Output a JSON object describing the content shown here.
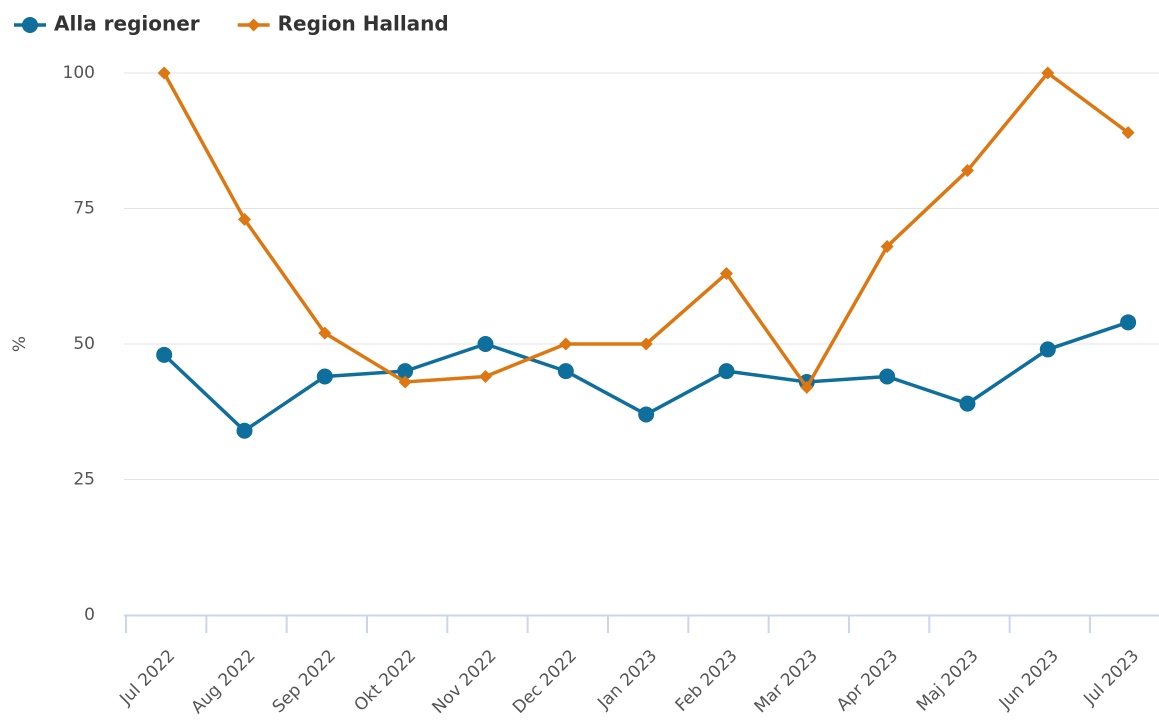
{
  "chart_data": {
    "type": "line",
    "ylabel": "%",
    "categories": [
      "Jul 2022",
      "Aug 2022",
      "Sep 2022",
      "Okt 2022",
      "Nov 2022",
      "Dec 2022",
      "Jan 2023",
      "Feb 2023",
      "Mar 2023",
      "Apr 2023",
      "Maj 2023",
      "Jun 2023",
      "Jul 2023"
    ],
    "series": [
      {
        "name": "Alla regioner",
        "color": "#0e6e9c",
        "marker": "circle",
        "values": [
          48,
          34,
          44,
          45,
          50,
          45,
          37,
          45,
          43,
          44,
          39,
          49,
          54
        ]
      },
      {
        "name": "Region Halland",
        "color": "#dd7711",
        "marker": "diamond",
        "values": [
          100,
          73,
          52,
          43,
          44,
          50,
          50,
          63,
          42,
          68,
          82,
          100,
          89
        ]
      }
    ],
    "ylim": [
      0,
      100
    ],
    "yticks": [
      0,
      25,
      50,
      75,
      100
    ],
    "grid": true,
    "legend": "top-left"
  }
}
